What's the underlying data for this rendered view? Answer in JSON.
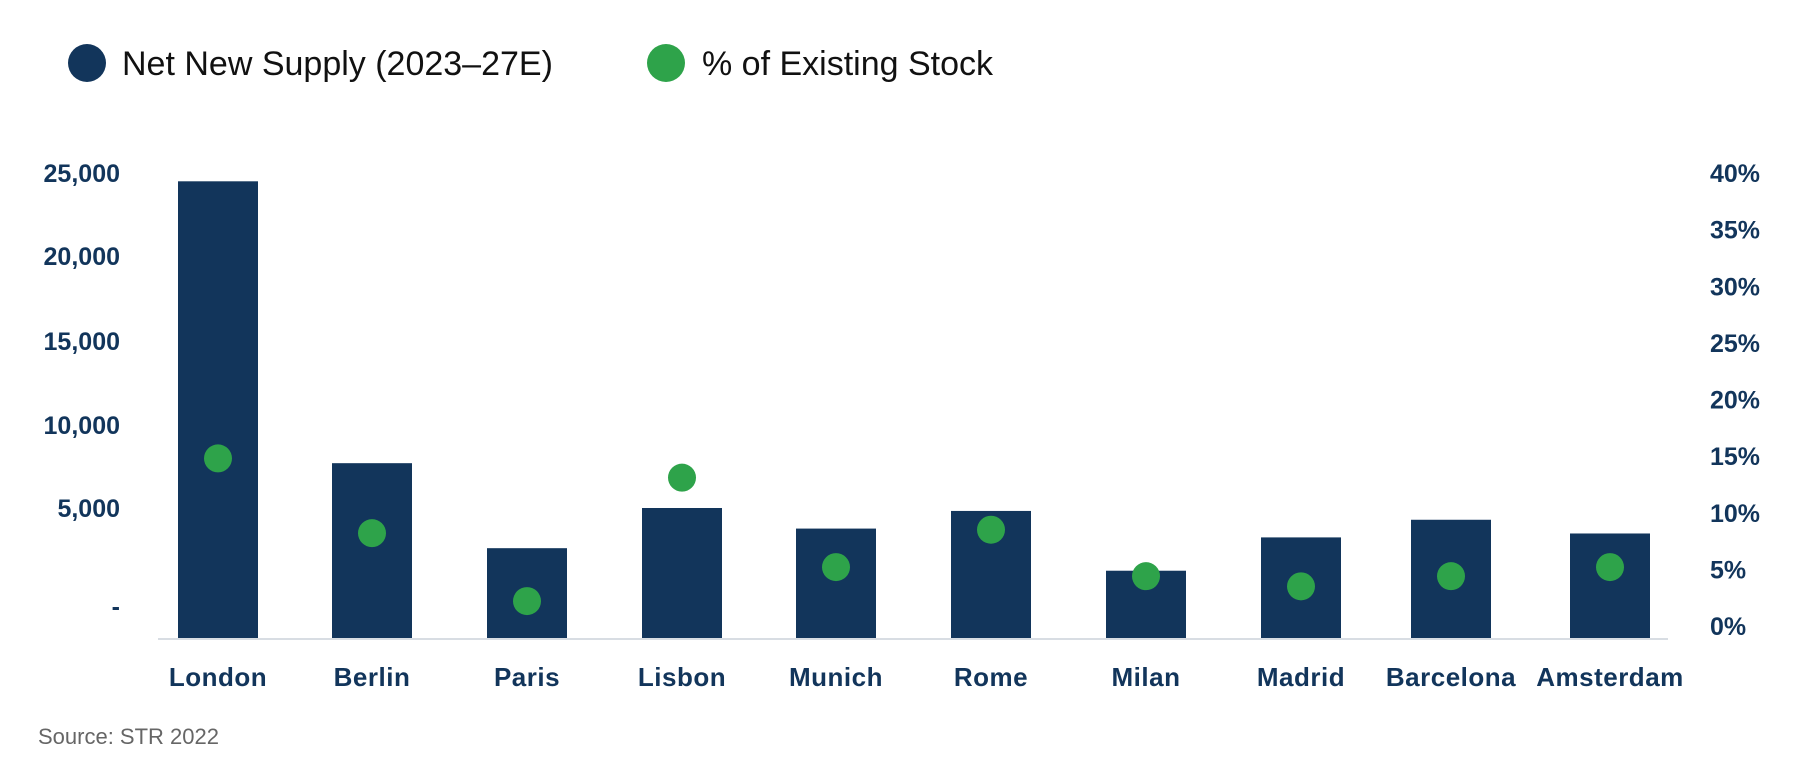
{
  "colors": {
    "bar": "#12355b",
    "dot": "#2ea34a",
    "axis_text": "#12355b",
    "baseline": "#d8dde3"
  },
  "source": "Source: STR 2022",
  "chart_data": {
    "type": "bar",
    "categories": [
      "London",
      "Berlin",
      "Paris",
      "Lisbon",
      "Munich",
      "Rome",
      "Milan",
      "Madrid",
      "Barcelona",
      "Amsterdam"
    ],
    "series": [
      {
        "name": "Net New Supply (2023–27E)",
        "type": "bar",
        "axis": "left",
        "values": [
          24500,
          7700,
          2950,
          5000,
          3950,
          4850,
          1800,
          3500,
          4400,
          3700
        ]
      },
      {
        "name": "% of Existing Stock",
        "type": "scatter",
        "axis": "right",
        "values": [
          14.8,
          8.2,
          2.2,
          13.1,
          5.2,
          8.5,
          4.4,
          3.5,
          4.4,
          5.2
        ]
      }
    ],
    "y_left": {
      "ticks": [
        0,
        5000,
        10000,
        15000,
        20000,
        25000
      ],
      "tick_labels": [
        "-",
        "5,000",
        "10,000",
        "15,000",
        "20,000",
        "25,000"
      ]
    },
    "y_right": {
      "ylim": [
        0,
        40
      ],
      "ticks": [
        0,
        5,
        10,
        15,
        20,
        25,
        30,
        35,
        40
      ],
      "tick_labels": [
        "0%",
        "5%",
        "10%",
        "15%",
        "20%",
        "25%",
        "30%",
        "35%",
        "40%"
      ]
    },
    "legend_position": "top-left",
    "grid": false
  }
}
